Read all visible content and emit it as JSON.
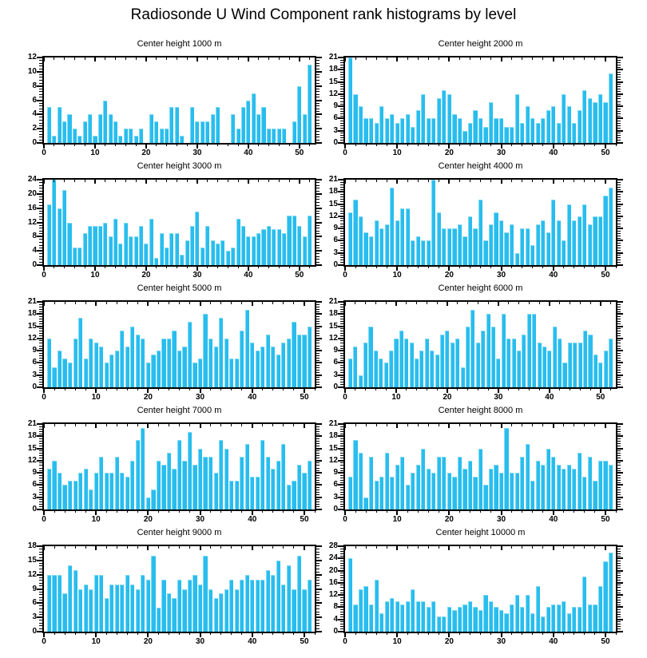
{
  "title": "Radiosonde U Wind Component rank histograms by level",
  "colors": {
    "bar": "#29BDEE",
    "bar_highlight": "#7FD9F4",
    "axis": "#000000",
    "background": "#FFFFFF"
  },
  "chart_data": {
    "type": "bar",
    "title": "Radiosonde U Wind Component rank histograms by level",
    "layout": "5 rows x 2 columns of rank histograms",
    "xlabel": "",
    "ylabel": "",
    "x_major_ticks": [
      0,
      10,
      20,
      30,
      40,
      50
    ],
    "x_minor_step": 2,
    "grid": false,
    "legend": "none",
    "panels": [
      {
        "title": "Center height 1000 m",
        "ymax": 12,
        "ystep": 2,
        "values": [
          5,
          1,
          5,
          3,
          4,
          2,
          1,
          3,
          4,
          1,
          4,
          6,
          4,
          3,
          1,
          2,
          2,
          1,
          2,
          0,
          4,
          3,
          2,
          2,
          5,
          5,
          1,
          0,
          5,
          3,
          3,
          3,
          4,
          5,
          0,
          0,
          4,
          2,
          5,
          6,
          7,
          4,
          5,
          2,
          2,
          2,
          2,
          0,
          3,
          8,
          4,
          11
        ]
      },
      {
        "title": "Center height 2000 m",
        "ymax": 21,
        "ystep": 3,
        "values": [
          21,
          12,
          9,
          6,
          6,
          5,
          9,
          6,
          7,
          5,
          6,
          7,
          4,
          8,
          12,
          6,
          6,
          11,
          13,
          12,
          7,
          6,
          3,
          5,
          8,
          6,
          4,
          10,
          6,
          6,
          4,
          4,
          12,
          5,
          9,
          6,
          5,
          6,
          8,
          9,
          5,
          12,
          9,
          5,
          8,
          13,
          11,
          10,
          12,
          10,
          17
        ]
      },
      {
        "title": "Center height 3000 m",
        "ymax": 24,
        "ystep": 4,
        "values": [
          17,
          24,
          16,
          21,
          12,
          5,
          5,
          9,
          11,
          11,
          11,
          12,
          8,
          13,
          6,
          12,
          8,
          8,
          11,
          6,
          13,
          2,
          9,
          5,
          9,
          9,
          3,
          7,
          11,
          15,
          5,
          11,
          7,
          6,
          7,
          4,
          5,
          13,
          11,
          8,
          8,
          9,
          10,
          11,
          10,
          10,
          9,
          14,
          14,
          11,
          8,
          14
        ]
      },
      {
        "title": "Center height 4000 m",
        "ymax": 21,
        "ystep": 3,
        "values": [
          13,
          16,
          12,
          8,
          7,
          11,
          9,
          10,
          19,
          11,
          14,
          14,
          6,
          7,
          6,
          6,
          21,
          13,
          9,
          9,
          9,
          10,
          7,
          12,
          9,
          16,
          6,
          10,
          13,
          11,
          8,
          10,
          3,
          9,
          9,
          5,
          10,
          11,
          8,
          16,
          11,
          6,
          15,
          11,
          12,
          15,
          10,
          12,
          12,
          17,
          19
        ]
      },
      {
        "title": "Center height 5000 m",
        "ymax": 21,
        "ystep": 3,
        "values": [
          12,
          5,
          9,
          7,
          6,
          12,
          17,
          7,
          12,
          11,
          10,
          6,
          8,
          9,
          14,
          10,
          15,
          13,
          12,
          6,
          8,
          9,
          12,
          12,
          14,
          9,
          10,
          16,
          6,
          7,
          18,
          12,
          10,
          17,
          12,
          7,
          7,
          14,
          19,
          11,
          9,
          10,
          13,
          10,
          8,
          11,
          12,
          16,
          13,
          13,
          15
        ]
      },
      {
        "title": "Center height 6000 m",
        "ymax": 21,
        "ystep": 3,
        "values": [
          7,
          10,
          3,
          11,
          15,
          9,
          7,
          6,
          9,
          12,
          14,
          12,
          11,
          7,
          9,
          12,
          9,
          8,
          13,
          14,
          11,
          12,
          5,
          15,
          19,
          11,
          14,
          18,
          15,
          7,
          18,
          12,
          12,
          9,
          13,
          18,
          18,
          11,
          10,
          9,
          15,
          12,
          6,
          11,
          11,
          11,
          14,
          13,
          8,
          6,
          9,
          12
        ]
      },
      {
        "title": "Center height 7000 m",
        "ymax": 21,
        "ystep": 3,
        "values": [
          10,
          12,
          9,
          6,
          7,
          7,
          9,
          10,
          5,
          9,
          13,
          9,
          9,
          13,
          9,
          8,
          12,
          17,
          20,
          3,
          5,
          12,
          11,
          14,
          10,
          17,
          12,
          19,
          11,
          15,
          13,
          13,
          9,
          17,
          15,
          7,
          7,
          13,
          16,
          8,
          8,
          17,
          13,
          10,
          12,
          16,
          6,
          7,
          11,
          9,
          12
        ]
      },
      {
        "title": "Center height 8000 m",
        "ymax": 21,
        "ystep": 3,
        "values": [
          8,
          17,
          14,
          3,
          13,
          7,
          8,
          14,
          8,
          11,
          13,
          6,
          9,
          11,
          15,
          10,
          9,
          13,
          13,
          9,
          8,
          13,
          10,
          12,
          8,
          15,
          6,
          10,
          11,
          9,
          20,
          9,
          9,
          13,
          16,
          7,
          12,
          11,
          15,
          13,
          11,
          10,
          11,
          10,
          14,
          8,
          13,
          7,
          12,
          12,
          11
        ]
      },
      {
        "title": "Center height 9000 m",
        "ymax": 18,
        "ystep": 3,
        "values": [
          12,
          12,
          12,
          8,
          14,
          13,
          9,
          10,
          9,
          12,
          12,
          7,
          10,
          10,
          10,
          12,
          10,
          9,
          12,
          11,
          16,
          5,
          11,
          8,
          7,
          11,
          9,
          11,
          12,
          10,
          16,
          9,
          7,
          8,
          9,
          11,
          9,
          11,
          12,
          11,
          11,
          11,
          13,
          12,
          15,
          10,
          14,
          9,
          16,
          9,
          11
        ]
      },
      {
        "title": "Center height 10000 m",
        "ymax": 28,
        "ystep": 4,
        "values": [
          24,
          9,
          14,
          15,
          9,
          17,
          6,
          10,
          11,
          10,
          9,
          10,
          14,
          10,
          10,
          8,
          10,
          5,
          5,
          8,
          7,
          8,
          9,
          10,
          8,
          7,
          12,
          10,
          8,
          7,
          6,
          9,
          12,
          8,
          12,
          6,
          15,
          5,
          8,
          9,
          9,
          10,
          6,
          8,
          8,
          18,
          9,
          9,
          15,
          23,
          26
        ]
      }
    ]
  }
}
